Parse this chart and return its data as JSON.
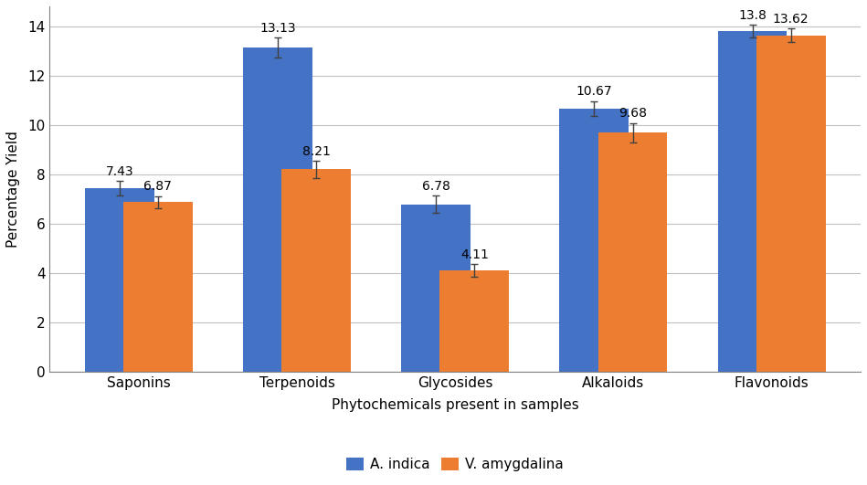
{
  "categories": [
    "Saponins",
    "Terpenoids",
    "Glycosides",
    "Alkaloids",
    "Flavonoids"
  ],
  "a_indica_values": [
    7.43,
    13.13,
    6.78,
    10.67,
    13.8
  ],
  "v_amygdalina_values": [
    6.87,
    8.21,
    4.11,
    9.68,
    13.62
  ],
  "a_indica_errors": [
    0.3,
    0.4,
    0.35,
    0.3,
    0.25
  ],
  "v_amygdalina_errors": [
    0.25,
    0.35,
    0.25,
    0.4,
    0.28
  ],
  "a_indica_color": "#4472C4",
  "v_amygdalina_color": "#ED7D31",
  "xlabel": "Phytochemicals present in samples",
  "ylabel": "Percentage Yield",
  "ylim": [
    0,
    14.8
  ],
  "yticks": [
    0,
    2,
    4,
    6,
    8,
    10,
    12,
    14
  ],
  "legend_labels": [
    "A. indica",
    "V. amygdalina"
  ],
  "bar_width": 0.7,
  "group_width": 1.0,
  "error_color": "#404040",
  "error_capsize": 3,
  "grid_color": "#c0c0c0",
  "background_color": "#ffffff",
  "label_fontsize": 11,
  "tick_fontsize": 11,
  "value_fontsize": 10,
  "spine_color": "#808080"
}
